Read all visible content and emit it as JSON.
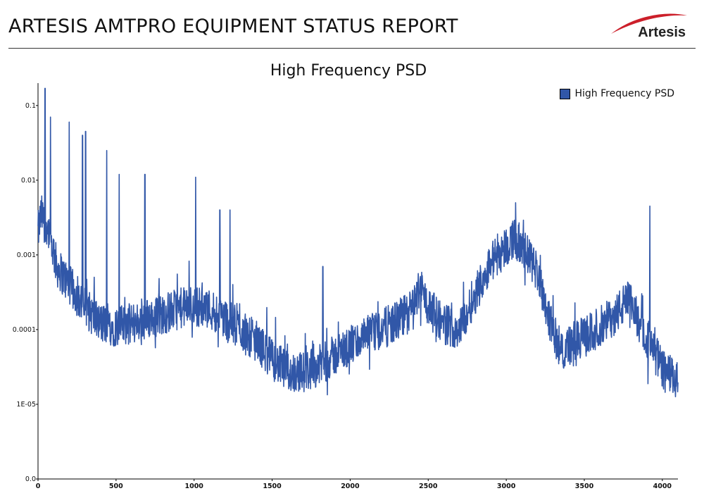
{
  "header": {
    "title": "ARTESIS AMTPRO EQUIPMENT STATUS REPORT",
    "logo_text": "Artesis"
  },
  "colors": {
    "series": "#3157a8",
    "logo_swoosh": "#cc1f2a",
    "axis": "#000000"
  },
  "chart_data": {
    "type": "line",
    "title": "High Frequency PSD",
    "xlabel": "",
    "ylabel": "",
    "xlim": [
      0,
      4100
    ],
    "ylim_log10": [
      -6,
      -0.7
    ],
    "log_scale_y": true,
    "grid": false,
    "legend_position": "top-right",
    "x_ticks": [
      "0",
      "500",
      "1000",
      "1500",
      "2000",
      "2500",
      "3000",
      "3500",
      "4000"
    ],
    "x_tick_values": [
      0,
      500,
      1000,
      1500,
      2000,
      2500,
      3000,
      3500,
      4000
    ],
    "y_ticks": [
      {
        "label": "0.1",
        "value": 0.1
      },
      {
        "label": "0.01",
        "value": 0.01
      },
      {
        "label": "0.001",
        "value": 0.001
      },
      {
        "label": "0.0001",
        "value": 0.0001
      },
      {
        "label": "1E-05",
        "value": 1e-05
      },
      {
        "label": "0.0",
        "value": 1e-06
      }
    ],
    "series": [
      {
        "name": "High Frequency PSD",
        "baseline_x": [
          0,
          20,
          60,
          120,
          200,
          300,
          400,
          500,
          600,
          700,
          800,
          900,
          1000,
          1100,
          1200,
          1300,
          1400,
          1500,
          1600,
          1700,
          1800,
          1900,
          2000,
          2100,
          2200,
          2300,
          2400,
          2450,
          2500,
          2600,
          2700,
          2800,
          2900,
          3000,
          3050,
          3100,
          3200,
          3300,
          3350,
          3400,
          3500,
          3600,
          3700,
          3780,
          3850,
          3900,
          4000,
          4100
        ],
        "baseline_y": [
          0.002,
          0.0035,
          0.0025,
          0.0007,
          0.0004,
          0.0002,
          0.00012,
          0.00011,
          0.00012,
          0.00014,
          0.00016,
          0.00019,
          0.00021,
          0.00019,
          0.00014,
          0.0001,
          7e-05,
          4e-05,
          2.7e-05,
          2.7e-05,
          3.3e-05,
          4.5e-05,
          6e-05,
          8e-05,
          0.0001,
          0.00013,
          0.00019,
          0.0004,
          0.0002,
          0.00012,
          0.0001,
          0.0003,
          0.0008,
          0.0013,
          0.0017,
          0.0013,
          0.0006,
          9e-05,
          5.5e-05,
          6e-05,
          8e-05,
          0.00011,
          0.00016,
          0.00025,
          0.00013,
          8e-05,
          3e-05,
          2e-05
        ],
        "peaks": [
          {
            "x": 45,
            "y": 0.17
          },
          {
            "x": 80,
            "y": 0.07
          },
          {
            "x": 200,
            "y": 0.06
          },
          {
            "x": 285,
            "y": 0.04
          },
          {
            "x": 305,
            "y": 0.045
          },
          {
            "x": 440,
            "y": 0.025
          },
          {
            "x": 520,
            "y": 0.012
          },
          {
            "x": 685,
            "y": 0.012
          },
          {
            "x": 1010,
            "y": 0.011
          },
          {
            "x": 1165,
            "y": 0.004
          },
          {
            "x": 1230,
            "y": 0.004
          },
          {
            "x": 1825,
            "y": 0.0007
          },
          {
            "x": 3060,
            "y": 0.005
          },
          {
            "x": 3920,
            "y": 0.0045
          }
        ]
      }
    ]
  }
}
